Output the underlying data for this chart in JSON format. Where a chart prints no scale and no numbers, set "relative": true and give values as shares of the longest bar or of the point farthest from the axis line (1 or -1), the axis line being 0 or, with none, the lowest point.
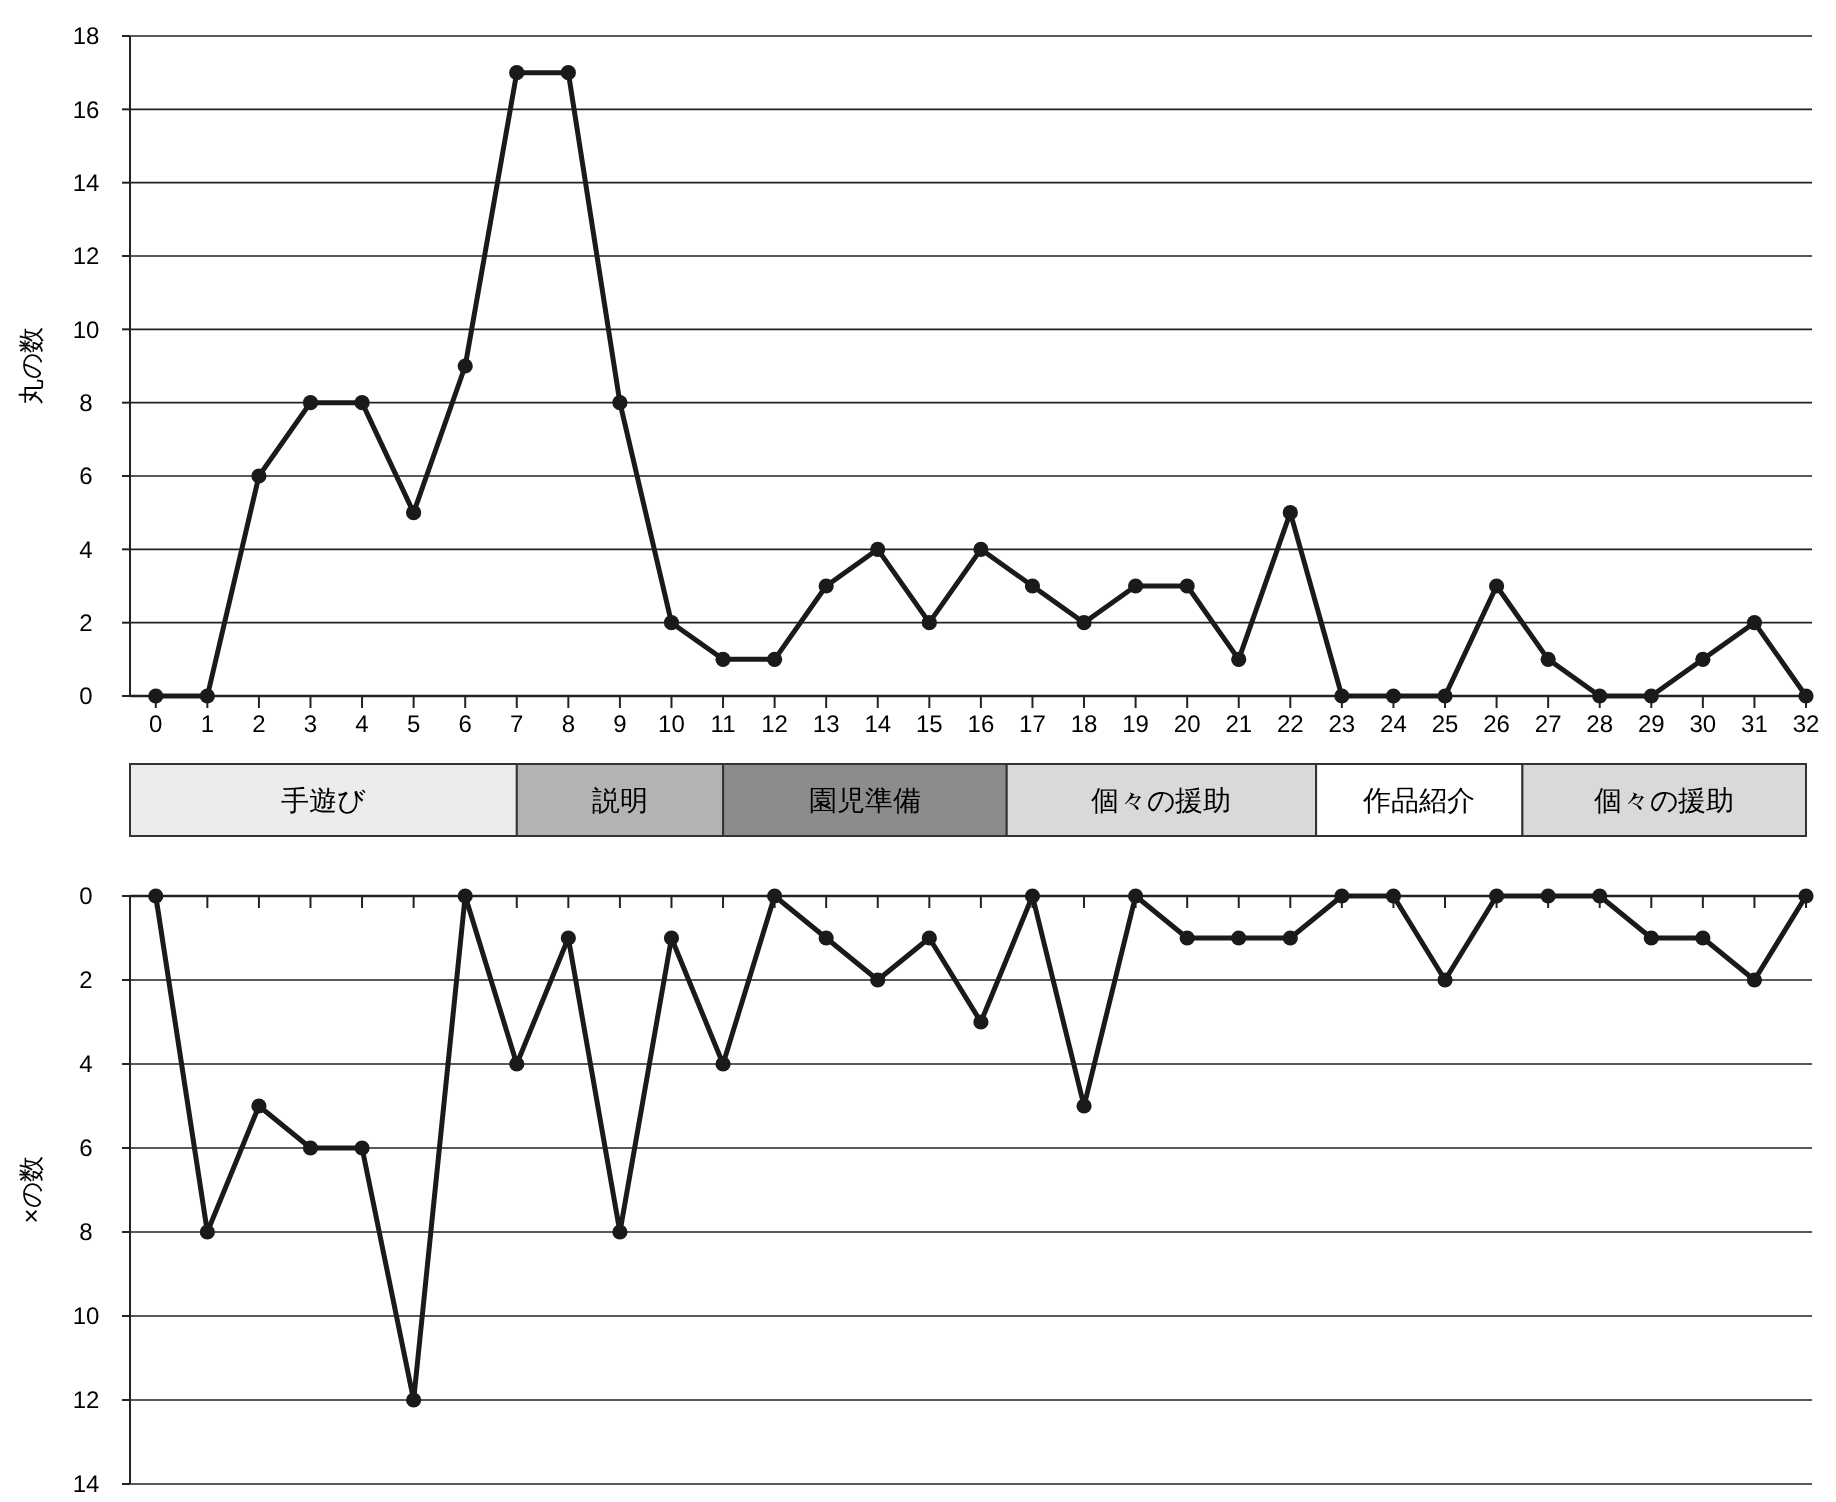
{
  "chart_data": [
    {
      "type": "line",
      "ylabel": "丸の数",
      "x": [
        0,
        1,
        2,
        3,
        4,
        5,
        6,
        7,
        8,
        9,
        10,
        11,
        12,
        13,
        14,
        15,
        16,
        17,
        18,
        19,
        20,
        21,
        22,
        23,
        24,
        25,
        26,
        27,
        28,
        29,
        30,
        31,
        32
      ],
      "series": [
        {
          "color": "#1a1a1a",
          "values": [
            0,
            0,
            6,
            8,
            8,
            5,
            9,
            17,
            17,
            8,
            2,
            1,
            1,
            3,
            4,
            2,
            4,
            3,
            2,
            3,
            3,
            1,
            5,
            0,
            0,
            0,
            3,
            1,
            0,
            0,
            1,
            2,
            0
          ]
        }
      ],
      "xlim": [
        -0.5,
        32
      ],
      "xticks": [
        0,
        1,
        2,
        3,
        4,
        5,
        6,
        7,
        8,
        9,
        10,
        11,
        12,
        13,
        14,
        15,
        16,
        17,
        18,
        19,
        20,
        21,
        22,
        23,
        24,
        25,
        26,
        27,
        28,
        29,
        30,
        31,
        32
      ],
      "ylim": [
        0,
        18
      ],
      "yticks": [
        0,
        2,
        4,
        6,
        8,
        10,
        12,
        14,
        16,
        18
      ],
      "grid": "y",
      "marker": "circle",
      "line_style": "solid"
    },
    {
      "type": "bar",
      "orientation": "horizontal",
      "stacked": true,
      "relative": true,
      "categories": [
        null
      ],
      "series": [
        {
          "name": "手遊び",
          "color": "#ececec",
          "values": [
            0.2308
          ]
        },
        {
          "name": "説明",
          "color": "#b3b3b3",
          "values": [
            0.1231
          ]
        },
        {
          "name": "園児準備",
          "color": "#8c8c8c",
          "values": [
            0.1692
          ]
        },
        {
          "name": "個々の援助",
          "color": "#d9d9d9",
          "values": [
            0.1846
          ]
        },
        {
          "name": "作品紹介",
          "color": "#ffffff",
          "values": [
            0.1231
          ]
        },
        {
          "name": "個々の援助",
          "color": "#d9d9d9",
          "values": [
            0.1692
          ]
        }
      ]
    },
    {
      "type": "line",
      "ylabel": "×の数",
      "x": [
        0,
        1,
        2,
        3,
        4,
        5,
        6,
        7,
        8,
        9,
        10,
        11,
        12,
        13,
        14,
        15,
        16,
        17,
        18,
        19,
        20,
        21,
        22,
        23,
        24,
        25,
        26,
        27,
        28,
        29,
        30,
        31,
        32
      ],
      "series": [
        {
          "color": "#1a1a1a",
          "values": [
            0,
            8,
            5,
            6,
            6,
            12,
            0,
            4,
            1,
            8,
            1,
            4,
            0,
            1,
            2,
            1,
            3,
            0,
            5,
            0,
            1,
            1,
            1,
            0,
            0,
            2,
            0,
            0,
            0,
            1,
            1,
            2,
            0
          ]
        }
      ],
      "xlim": [
        -0.5,
        32
      ],
      "xticks": [
        {
          "value": 0,
          "label": null
        },
        {
          "value": 1,
          "label": null
        },
        {
          "value": 2,
          "label": null
        },
        {
          "value": 3,
          "label": null
        },
        {
          "value": 4,
          "label": null
        },
        {
          "value": 5,
          "label": null
        },
        {
          "value": 6,
          "label": null
        },
        {
          "value": 7,
          "label": null
        },
        {
          "value": 8,
          "label": null
        },
        {
          "value": 9,
          "label": null
        },
        {
          "value": 10,
          "label": null
        },
        {
          "value": 11,
          "label": null
        },
        {
          "value": 12,
          "label": null
        },
        {
          "value": 13,
          "label": null
        },
        {
          "value": 14,
          "label": null
        },
        {
          "value": 15,
          "label": null
        },
        {
          "value": 16,
          "label": null
        },
        {
          "value": 17,
          "label": null
        },
        {
          "value": 18,
          "label": null
        },
        {
          "value": 19,
          "label": null
        },
        {
          "value": 20,
          "label": null
        },
        {
          "value": 21,
          "label": null
        },
        {
          "value": 22,
          "label": null
        },
        {
          "value": 23,
          "label": null
        },
        {
          "value": 24,
          "label": null
        },
        {
          "value": 25,
          "label": null
        },
        {
          "value": 26,
          "label": null
        },
        {
          "value": 27,
          "label": null
        },
        {
          "value": 28,
          "label": null
        },
        {
          "value": 29,
          "label": null
        },
        {
          "value": 30,
          "label": null
        },
        {
          "value": 31,
          "label": null
        },
        {
          "value": 32,
          "label": null
        }
      ],
      "ylim": [
        14,
        0
      ],
      "yticks": [
        0,
        2,
        4,
        6,
        8,
        10,
        12,
        14
      ],
      "grid": "y",
      "marker": "circle",
      "line_style": "solid",
      "tick_labels": "y"
    }
  ]
}
